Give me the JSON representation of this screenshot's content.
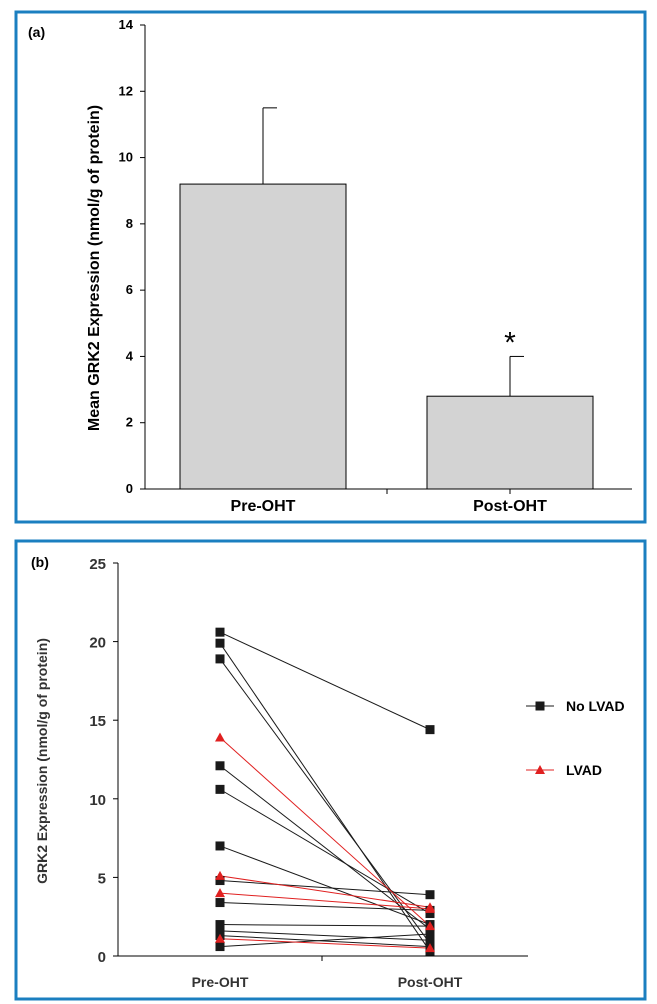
{
  "colors": {
    "frame": "#1b7fc0",
    "bar_fill": "#d3d3d3",
    "no_lvad": "#1a1a1a",
    "lvad": "#e02020"
  },
  "chart_data": [
    {
      "panel_label": "(a)",
      "type": "bar",
      "ylabel": "Mean GRK2 Expression (nmol/g of protein)",
      "xlabel": "",
      "ylim": [
        0,
        14
      ],
      "yticks": [
        0,
        2,
        4,
        6,
        8,
        10,
        12,
        14
      ],
      "categories": [
        "Pre-OHT",
        "Post-OHT"
      ],
      "values": [
        9.2,
        2.8
      ],
      "error_upper": [
        11.5,
        4.0
      ],
      "annotations": [
        {
          "category": "Post-OHT",
          "text": "*"
        }
      ]
    },
    {
      "panel_label": "(b)",
      "type": "line",
      "ylabel": "GRK2 Expression (nmol/g of protein)",
      "xlabel": "",
      "ylim": [
        0,
        25
      ],
      "yticks": [
        0,
        5,
        10,
        15,
        20,
        25
      ],
      "categories": [
        "Pre-OHT",
        "Post-OHT"
      ],
      "legend": {
        "position": "right",
        "entries": [
          "No LVAD",
          "LVAD"
        ]
      },
      "series": [
        {
          "name": "No LVAD",
          "pairs": [
            [
              20.6,
              14.4
            ],
            [
              19.9,
              0.3
            ],
            [
              18.9,
              0.8
            ],
            [
              12.1,
              1.7
            ],
            [
              10.6,
              2.7
            ],
            [
              7.0,
              2.0
            ],
            [
              4.8,
              3.9
            ],
            [
              3.4,
              2.9
            ],
            [
              2.0,
              1.9
            ],
            [
              1.6,
              1.0
            ],
            [
              1.3,
              0.6
            ],
            [
              0.6,
              1.4
            ]
          ]
        },
        {
          "name": "LVAD",
          "pairs": [
            [
              13.9,
              1.9
            ],
            [
              5.1,
              3.1
            ],
            [
              4.0,
              3.0
            ],
            [
              1.1,
              0.5
            ]
          ]
        }
      ]
    }
  ]
}
